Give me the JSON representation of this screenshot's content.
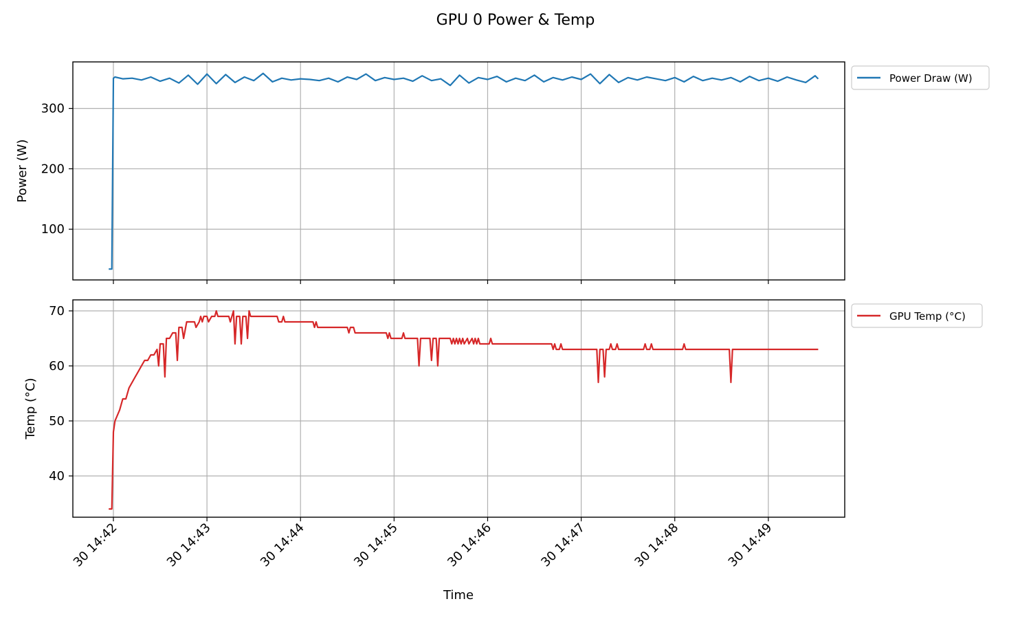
{
  "chart_data": [
    {
      "type": "line",
      "title": "GPU 0 Power & Temp",
      "xlabel": "",
      "ylabel": "Power (W)",
      "ylim": [
        16,
        377
      ],
      "yticks": [
        100,
        200,
        300
      ],
      "xlim": [
        "14:41:34",
        "14:49:49"
      ],
      "xticks": [
        "30 14:42",
        "30 14:43",
        "30 14:44",
        "30 14:45",
        "30 14:46",
        "30 14:47",
        "30 14:48",
        "30 14:49"
      ],
      "xtick_times": [
        "14:42:00",
        "14:43:00",
        "14:44:00",
        "14:45:00",
        "14:46:00",
        "14:47:00",
        "14:48:00",
        "14:49:00"
      ],
      "grid": true,
      "legend": "outside-top-right",
      "series": [
        {
          "name": "Power Draw (W)",
          "color": "#1f77b4",
          "start": "14:41:57",
          "end": "14:49:32",
          "points": [
            [
              "14:41:57",
              34
            ],
            [
              "14:41:59",
              34
            ],
            [
              "14:42:00",
              350
            ],
            [
              "14:42:01",
              352
            ],
            [
              "14:42:06",
              349
            ],
            [
              "14:42:12",
              350
            ],
            [
              "14:42:18",
              347
            ],
            [
              "14:42:24",
              352
            ],
            [
              "14:42:30",
              345
            ],
            [
              "14:42:36",
              350
            ],
            [
              "14:42:42",
              342
            ],
            [
              "14:42:48",
              355
            ],
            [
              "14:42:54",
              340
            ],
            [
              "14:43:00",
              357
            ],
            [
              "14:43:06",
              341
            ],
            [
              "14:43:12",
              356
            ],
            [
              "14:43:18",
              343
            ],
            [
              "14:43:24",
              352
            ],
            [
              "14:43:30",
              346
            ],
            [
              "14:43:36",
              358
            ],
            [
              "14:43:42",
              344
            ],
            [
              "14:43:48",
              350
            ],
            [
              "14:43:54",
              347
            ],
            [
              "14:44:00",
              349
            ],
            [
              "14:44:06",
              348
            ],
            [
              "14:44:12",
              346
            ],
            [
              "14:44:18",
              350
            ],
            [
              "14:44:24",
              344
            ],
            [
              "14:44:30",
              352
            ],
            [
              "14:44:36",
              348
            ],
            [
              "14:44:42",
              357
            ],
            [
              "14:44:48",
              346
            ],
            [
              "14:44:54",
              351
            ],
            [
              "14:45:00",
              348
            ],
            [
              "14:45:06",
              350
            ],
            [
              "14:45:12",
              345
            ],
            [
              "14:45:18",
              354
            ],
            [
              "14:45:24",
              346
            ],
            [
              "14:45:30",
              349
            ],
            [
              "14:45:36",
              338
            ],
            [
              "14:45:42",
              355
            ],
            [
              "14:45:48",
              342
            ],
            [
              "14:45:54",
              351
            ],
            [
              "14:46:00",
              348
            ],
            [
              "14:46:06",
              353
            ],
            [
              "14:46:12",
              344
            ],
            [
              "14:46:18",
              350
            ],
            [
              "14:46:24",
              346
            ],
            [
              "14:46:30",
              355
            ],
            [
              "14:46:36",
              344
            ],
            [
              "14:46:42",
              351
            ],
            [
              "14:46:48",
              347
            ],
            [
              "14:46:54",
              352
            ],
            [
              "14:47:00",
              348
            ],
            [
              "14:47:06",
              357
            ],
            [
              "14:47:12",
              341
            ],
            [
              "14:47:18",
              356
            ],
            [
              "14:47:24",
              343
            ],
            [
              "14:47:30",
              351
            ],
            [
              "14:47:36",
              347
            ],
            [
              "14:47:42",
              352
            ],
            [
              "14:47:48",
              349
            ],
            [
              "14:47:54",
              346
            ],
            [
              "14:48:00",
              351
            ],
            [
              "14:48:06",
              344
            ],
            [
              "14:48:12",
              353
            ],
            [
              "14:48:18",
              346
            ],
            [
              "14:48:24",
              350
            ],
            [
              "14:48:30",
              347
            ],
            [
              "14:48:36",
              351
            ],
            [
              "14:48:42",
              344
            ],
            [
              "14:48:48",
              353
            ],
            [
              "14:48:54",
              346
            ],
            [
              "14:49:00",
              350
            ],
            [
              "14:49:06",
              345
            ],
            [
              "14:49:12",
              352
            ],
            [
              "14:49:18",
              347
            ],
            [
              "14:49:24",
              343
            ],
            [
              "14:49:30",
              354
            ],
            [
              "14:49:32",
              349
            ]
          ]
        }
      ]
    },
    {
      "type": "line",
      "title": "",
      "xlabel": "Time",
      "ylabel": "Temp (°C)",
      "ylim": [
        32.5,
        72
      ],
      "yticks": [
        40,
        50,
        60,
        70
      ],
      "xlim": [
        "14:41:34",
        "14:49:49"
      ],
      "xticks": [
        "30 14:42",
        "30 14:43",
        "30 14:44",
        "30 14:45",
        "30 14:46",
        "30 14:47",
        "30 14:48",
        "30 14:49"
      ],
      "xtick_times": [
        "14:42:00",
        "14:43:00",
        "14:44:00",
        "14:45:00",
        "14:46:00",
        "14:47:00",
        "14:48:00",
        "14:49:00"
      ],
      "grid": true,
      "legend": "outside-top-right",
      "series": [
        {
          "name": "GPU Temp (°C)",
          "color": "#d62728",
          "points": [
            [
              "14:41:57",
              34
            ],
            [
              "14:41:59",
              34
            ],
            [
              "14:42:00",
              48
            ],
            [
              "14:42:01",
              50
            ],
            [
              "14:42:04",
              52
            ],
            [
              "14:42:06",
              54
            ],
            [
              "14:42:08",
              54
            ],
            [
              "14:42:10",
              56
            ],
            [
              "14:42:12",
              57
            ],
            [
              "14:42:14",
              58
            ],
            [
              "14:42:16",
              59
            ],
            [
              "14:42:18",
              60
            ],
            [
              "14:42:20",
              61
            ],
            [
              "14:42:22",
              61
            ],
            [
              "14:42:24",
              62
            ],
            [
              "14:42:26",
              62
            ],
            [
              "14:42:28",
              63
            ],
            [
              "14:42:29",
              60
            ],
            [
              "14:42:30",
              64
            ],
            [
              "14:42:32",
              64
            ],
            [
              "14:42:33",
              58
            ],
            [
              "14:42:34",
              65
            ],
            [
              "14:42:36",
              65
            ],
            [
              "14:42:38",
              66
            ],
            [
              "14:42:40",
              66
            ],
            [
              "14:42:41",
              61
            ],
            [
              "14:42:42",
              67
            ],
            [
              "14:42:44",
              67
            ],
            [
              "14:42:45",
              65
            ],
            [
              "14:42:47",
              68
            ],
            [
              "14:42:50",
              68
            ],
            [
              "14:42:52",
              68
            ],
            [
              "14:42:53",
              67
            ],
            [
              "14:42:55",
              68
            ],
            [
              "14:42:56",
              69
            ],
            [
              "14:42:57",
              68
            ],
            [
              "14:42:58",
              69
            ],
            [
              "14:43:00",
              69
            ],
            [
              "14:43:01",
              68
            ],
            [
              "14:43:03",
              69
            ],
            [
              "14:43:05",
              69
            ],
            [
              "14:43:06",
              70
            ],
            [
              "14:43:07",
              69
            ],
            [
              "14:43:14",
              69
            ],
            [
              "14:43:15",
              68
            ],
            [
              "14:43:17",
              70
            ],
            [
              "14:43:18",
              64
            ],
            [
              "14:43:19",
              69
            ],
            [
              "14:43:21",
              69
            ],
            [
              "14:43:22",
              64
            ],
            [
              "14:43:23",
              69
            ],
            [
              "14:43:25",
              69
            ],
            [
              "14:43:26",
              65
            ],
            [
              "14:43:27",
              70
            ],
            [
              "14:43:28",
              69
            ],
            [
              "14:43:45",
              69
            ],
            [
              "14:43:46",
              68
            ],
            [
              "14:43:48",
              68
            ],
            [
              "14:43:49",
              69
            ],
            [
              "14:43:50",
              68
            ],
            [
              "14:44:08",
              68
            ],
            [
              "14:44:09",
              67
            ],
            [
              "14:44:10",
              68
            ],
            [
              "14:44:11",
              67
            ],
            [
              "14:44:30",
              67
            ],
            [
              "14:44:31",
              66
            ],
            [
              "14:44:32",
              67
            ],
            [
              "14:44:34",
              67
            ],
            [
              "14:44:35",
              66
            ],
            [
              "14:44:55",
              66
            ],
            [
              "14:44:56",
              65
            ],
            [
              "14:44:57",
              66
            ],
            [
              "14:44:58",
              65
            ],
            [
              "14:45:05",
              65
            ],
            [
              "14:45:06",
              66
            ],
            [
              "14:45:07",
              65
            ],
            [
              "14:45:15",
              65
            ],
            [
              "14:45:16",
              60
            ],
            [
              "14:45:17",
              65
            ],
            [
              "14:45:23",
              65
            ],
            [
              "14:45:24",
              61
            ],
            [
              "14:45:25",
              65
            ],
            [
              "14:45:27",
              65
            ],
            [
              "14:45:28",
              60
            ],
            [
              "14:45:29",
              65
            ],
            [
              "14:45:36",
              65
            ],
            [
              "14:45:37",
              64
            ],
            [
              "14:45:38",
              65
            ],
            [
              "14:45:39",
              64
            ],
            [
              "14:45:40",
              65
            ],
            [
              "14:45:41",
              64
            ],
            [
              "14:45:42",
              65
            ],
            [
              "14:45:43",
              64
            ],
            [
              "14:45:44",
              65
            ],
            [
              "14:45:45",
              64
            ],
            [
              "14:45:47",
              65
            ],
            [
              "14:45:48",
              64
            ],
            [
              "14:45:50",
              65
            ],
            [
              "14:45:51",
              64
            ],
            [
              "14:45:52",
              65
            ],
            [
              "14:45:53",
              64
            ],
            [
              "14:45:54",
              65
            ],
            [
              "14:45:55",
              64
            ],
            [
              "14:46:01",
              64
            ],
            [
              "14:46:02",
              65
            ],
            [
              "14:46:03",
              64
            ],
            [
              "14:46:41",
              64
            ],
            [
              "14:46:42",
              63
            ],
            [
              "14:46:43",
              64
            ],
            [
              "14:46:44",
              63
            ],
            [
              "14:46:46",
              63
            ],
            [
              "14:46:47",
              64
            ],
            [
              "14:46:48",
              63
            ],
            [
              "14:47:10",
              63
            ],
            [
              "14:47:11",
              57
            ],
            [
              "14:47:12",
              63
            ],
            [
              "14:47:14",
              63
            ],
            [
              "14:47:15",
              58
            ],
            [
              "14:47:16",
              63
            ],
            [
              "14:47:18",
              63
            ],
            [
              "14:47:19",
              64
            ],
            [
              "14:47:20",
              63
            ],
            [
              "14:47:22",
              63
            ],
            [
              "14:47:23",
              64
            ],
            [
              "14:47:24",
              63
            ],
            [
              "14:47:40",
              63
            ],
            [
              "14:47:41",
              64
            ],
            [
              "14:47:42",
              63
            ],
            [
              "14:47:44",
              63
            ],
            [
              "14:47:45",
              64
            ],
            [
              "14:47:46",
              63
            ],
            [
              "14:48:05",
              63
            ],
            [
              "14:48:06",
              64
            ],
            [
              "14:48:07",
              63
            ],
            [
              "14:48:35",
              63
            ],
            [
              "14:48:36",
              57
            ],
            [
              "14:48:37",
              63
            ],
            [
              "14:49:32",
              63
            ]
          ]
        }
      ]
    }
  ]
}
